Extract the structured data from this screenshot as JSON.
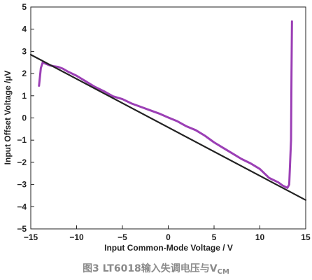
{
  "chart_data": {
    "type": "line",
    "xlabel": "Input Common-Mode Voltage / V",
    "ylabel": "Input Offset Voltage /µV",
    "xlim": [
      -15,
      15
    ],
    "ylim": [
      -5,
      5
    ],
    "xticks": [
      -15,
      -10,
      -5,
      0,
      5,
      10,
      15
    ],
    "xtick_labels": [
      "−15",
      "−10",
      "−5",
      "0",
      "5",
      "10",
      "15"
    ],
    "yticks": [
      5,
      4,
      3,
      2,
      1,
      0,
      -1,
      -2,
      -3,
      -4,
      -5
    ],
    "ytick_labels": [
      "5",
      "4",
      "3",
      "2",
      "1",
      "0",
      "−1",
      "−2",
      "−3",
      "−4",
      "−5"
    ],
    "grid": false,
    "series": [
      {
        "color": "#9b3fb5",
        "x": [
          -14.1,
          -13.9,
          -13.7,
          -13.4,
          -13.0,
          -12.5,
          -12.0,
          -11.5,
          -11.0,
          -10.0,
          -9.0,
          -8.0,
          -7.0,
          -6.0,
          -5.0,
          -4.0,
          -3.0,
          -2.0,
          -1.0,
          0.0,
          1.0,
          2.0,
          3.0,
          4.0,
          5.0,
          6.0,
          7.0,
          8.0,
          9.0,
          10.0,
          11.0,
          12.0,
          12.5,
          13.0,
          13.2,
          13.4,
          13.45,
          13.5
        ],
        "y": [
          1.45,
          2.25,
          2.5,
          2.45,
          2.38,
          2.33,
          2.3,
          2.22,
          2.1,
          1.9,
          1.65,
          1.4,
          1.2,
          0.97,
          0.85,
          0.65,
          0.5,
          0.35,
          0.2,
          0.02,
          -0.15,
          -0.38,
          -0.55,
          -0.8,
          -1.1,
          -1.35,
          -1.6,
          -1.85,
          -2.05,
          -2.3,
          -2.7,
          -2.9,
          -3.05,
          -3.15,
          -3.0,
          -1.0,
          2.0,
          4.35
        ]
      },
      {
        "color": "#222222",
        "x": [
          -15,
          15
        ],
        "y": [
          2.85,
          -3.7
        ]
      }
    ]
  },
  "caption": "图3 LT6018输入失调电压与V",
  "caption_sub": "CM"
}
